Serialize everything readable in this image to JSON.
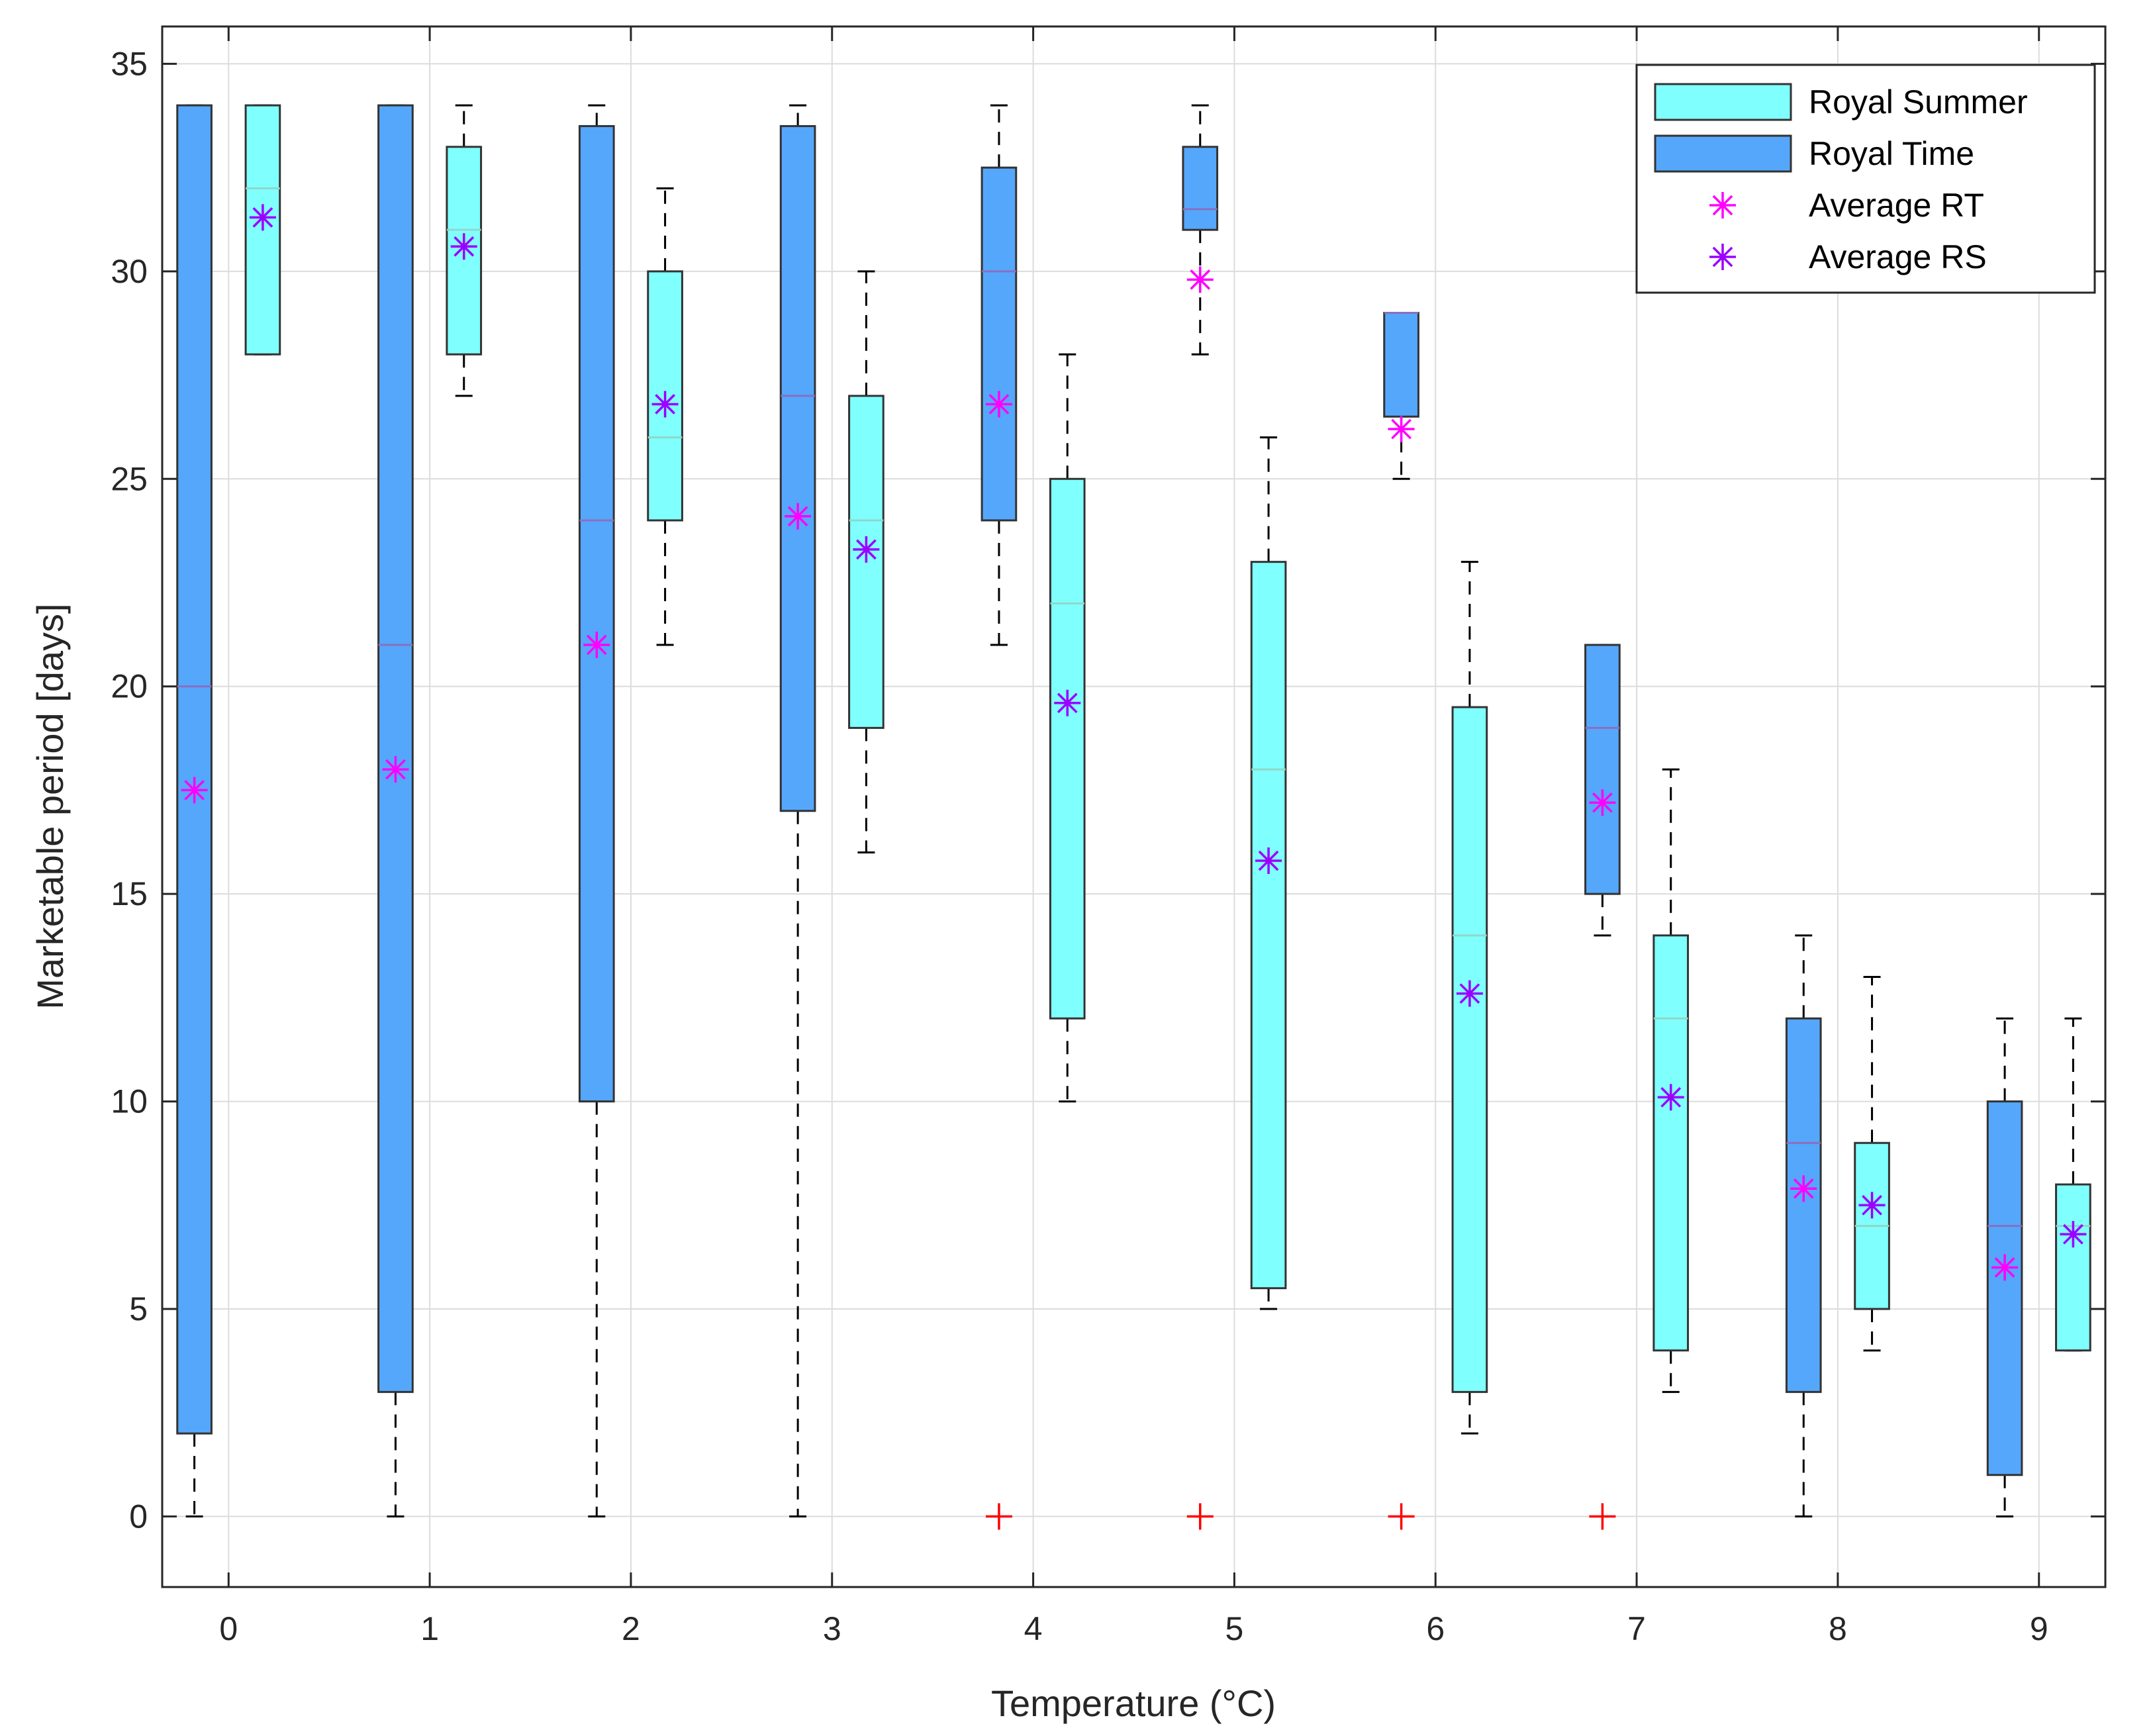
{
  "chart_data": {
    "type": "boxplot",
    "xlabel": "Temperature (°C)",
    "ylabel": "Marketable period [days]",
    "ylim": [
      -1.7,
      35.9
    ],
    "xlim": [
      -0.33,
      9.33
    ],
    "yticks": [
      0,
      5,
      10,
      15,
      20,
      25,
      30,
      35
    ],
    "xticks": [
      0,
      1,
      2,
      3,
      4,
      5,
      6,
      7,
      8,
      9
    ],
    "grid": true,
    "legend_position": "top-right",
    "colors": {
      "royal_summer": "#80FFFF",
      "royal_time": "#55A7FB",
      "average_rt": "#FF00FF",
      "average_rs": "#9B00FF",
      "outlier": "#FF0000"
    },
    "legend": [
      {
        "label": "Royal Summer",
        "kind": "box",
        "color": "#80FFFF"
      },
      {
        "label": "Royal Time",
        "kind": "box",
        "color": "#55A7FB"
      },
      {
        "label": "Average RT",
        "kind": "marker",
        "color": "#FF00FF"
      },
      {
        "label": "Average RS",
        "kind": "marker",
        "color": "#9B00FF"
      }
    ],
    "series": [
      {
        "name": "Royal Time",
        "x_offset": -0.17,
        "color": "#55A7FB",
        "boxes": [
          {
            "x": 0,
            "whisker_low": 0,
            "q1": 2,
            "median": 20,
            "q3": 34,
            "whisker_high": 34
          },
          {
            "x": 1,
            "whisker_low": 0,
            "q1": 3,
            "median": 21,
            "q3": 34,
            "whisker_high": 34
          },
          {
            "x": 2,
            "whisker_low": 0,
            "q1": 10,
            "median": 24,
            "q3": 33.5,
            "whisker_high": 34
          },
          {
            "x": 3,
            "whisker_low": 0,
            "q1": 17,
            "median": 27,
            "q3": 33.5,
            "whisker_high": 34
          },
          {
            "x": 4,
            "whisker_low": 21,
            "q1": 24,
            "median": 30,
            "q3": 32.5,
            "whisker_high": 34
          },
          {
            "x": 5,
            "whisker_low": 28,
            "q1": 31,
            "median": 31.5,
            "q3": 33,
            "whisker_high": 34
          },
          {
            "x": 6,
            "whisker_low": 25,
            "q1": 26.5,
            "median": 29,
            "q3": 29,
            "whisker_high": 29
          },
          {
            "x": 7,
            "whisker_low": 14,
            "q1": 15,
            "median": 19,
            "q3": 21,
            "whisker_high": 21
          },
          {
            "x": 8,
            "whisker_low": 0,
            "q1": 3,
            "median": 9,
            "q3": 12,
            "whisker_high": 14
          },
          {
            "x": 9,
            "whisker_low": 0,
            "q1": 1,
            "median": 7,
            "q3": 10,
            "whisker_high": 12
          }
        ],
        "outliers": [
          {
            "x": 4,
            "y": 0
          },
          {
            "x": 5,
            "y": 0
          },
          {
            "x": 6,
            "y": 0
          },
          {
            "x": 7,
            "y": 0
          }
        ],
        "averages": [
          17.5,
          18,
          21,
          24.1,
          26.8,
          29.8,
          26.2,
          17.2,
          7.9,
          6
        ]
      },
      {
        "name": "Royal Summer",
        "x_offset": 0.17,
        "color": "#80FFFF",
        "boxes": [
          {
            "x": 0,
            "whisker_low": 28,
            "q1": 28,
            "median": 32,
            "q3": 34,
            "whisker_high": 34
          },
          {
            "x": 1,
            "whisker_low": 27,
            "q1": 28,
            "median": 31,
            "q3": 33,
            "whisker_high": 34
          },
          {
            "x": 2,
            "whisker_low": 21,
            "q1": 24,
            "median": 26,
            "q3": 30,
            "whisker_high": 32
          },
          {
            "x": 3,
            "whisker_low": 16,
            "q1": 19,
            "median": 24,
            "q3": 27,
            "whisker_high": 30
          },
          {
            "x": 4,
            "whisker_low": 10,
            "q1": 12,
            "median": 22,
            "q3": 25,
            "whisker_high": 28
          },
          {
            "x": 5,
            "whisker_low": 5,
            "q1": 5.5,
            "median": 18,
            "q3": 23,
            "whisker_high": 26
          },
          {
            "x": 6,
            "whisker_low": 2,
            "q1": 3,
            "median": 14,
            "q3": 19.5,
            "whisker_high": 23
          },
          {
            "x": 7,
            "whisker_low": 3,
            "q1": 4,
            "median": 12,
            "q3": 14,
            "whisker_high": 18
          },
          {
            "x": 8,
            "whisker_low": 4,
            "q1": 5,
            "median": 7,
            "q3": 9,
            "whisker_high": 13
          },
          {
            "x": 9,
            "whisker_low": 4,
            "q1": 4,
            "median": 7,
            "q3": 8,
            "whisker_high": 12
          }
        ],
        "outliers": [],
        "averages": [
          31.3,
          30.6,
          26.8,
          23.3,
          19.6,
          15.8,
          12.6,
          10.1,
          7.5,
          6.8
        ]
      }
    ]
  }
}
